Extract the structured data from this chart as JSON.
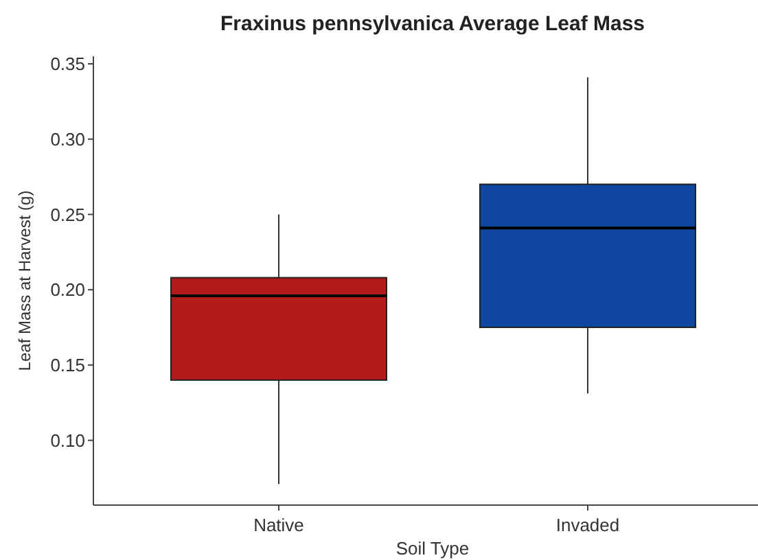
{
  "chart_data": {
    "type": "box",
    "title": "Fraxinus pennsylvanica Average Leaf Mass",
    "xlabel": "Soil Type",
    "ylabel": "Leaf Mass at Harvest (g)",
    "categories": [
      "Native",
      "Invaded"
    ],
    "colors": [
      "#b31b1b",
      "#0f47a0"
    ],
    "boxes": [
      {
        "low": 0.071,
        "q1": 0.14,
        "median": 0.196,
        "q3": 0.208,
        "high": 0.25
      },
      {
        "low": 0.131,
        "q1": 0.175,
        "median": 0.241,
        "q3": 0.27,
        "high": 0.341
      }
    ],
    "ylim": [
      0.057,
      0.355
    ],
    "yticks": [
      {
        "value": 0.1,
        "label": "0.10"
      },
      {
        "value": 0.15,
        "label": "0.15"
      },
      {
        "value": 0.2,
        "label": "0.20"
      },
      {
        "value": 0.25,
        "label": "0.25"
      },
      {
        "value": 0.3,
        "label": "0.30"
      },
      {
        "value": 0.35,
        "label": "0.35"
      }
    ],
    "grid": false
  }
}
